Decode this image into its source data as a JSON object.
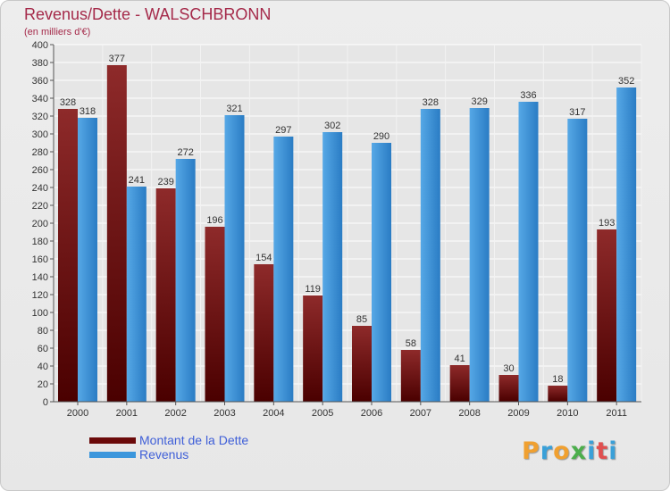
{
  "header": {
    "title": "Revenus/Dette - WALSCHBRONN",
    "subtitle": "(en milliers d'€)"
  },
  "legend": {
    "items": [
      {
        "label": "Montant de la Dette",
        "color": "#6b0a0a"
      },
      {
        "label": "Revenus",
        "color": "#3b96dc"
      }
    ]
  },
  "logo": {
    "text": "Proxiti",
    "colors": [
      "#f0a030",
      "#3aa0d8",
      "#f0a030",
      "#4cae4c",
      "#3aa0d8",
      "#e05050",
      "#3aa0d8"
    ]
  },
  "chart_data": {
    "type": "bar",
    "title": "Revenus/Dette - WALSCHBRONN",
    "subtitle": "(en milliers d'€)",
    "categories": [
      "2000",
      "2001",
      "2002",
      "2003",
      "2004",
      "2005",
      "2006",
      "2007",
      "2008",
      "2009",
      "2010",
      "2011"
    ],
    "series": [
      {
        "name": "Montant de la Dette",
        "color": "#6b0a0a",
        "values": [
          328,
          377,
          239,
          196,
          154,
          119,
          85,
          58,
          41,
          30,
          18,
          193
        ]
      },
      {
        "name": "Revenus",
        "color": "#3b96dc",
        "values": [
          318,
          241,
          272,
          321,
          297,
          302,
          290,
          328,
          329,
          336,
          317,
          352
        ]
      }
    ],
    "ylim": [
      0,
      400
    ],
    "ytick_step": 20,
    "grid": true,
    "legend_position": "bottom-left"
  }
}
